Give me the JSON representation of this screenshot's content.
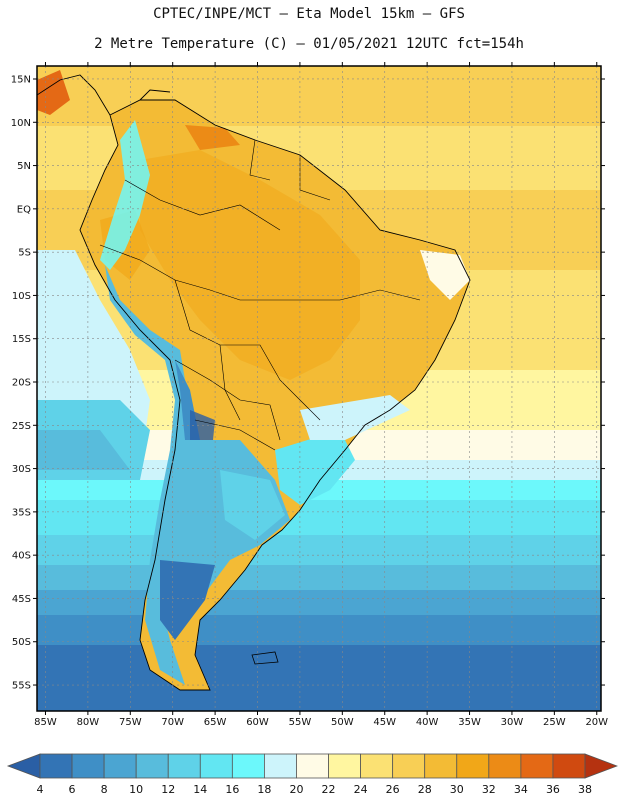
{
  "header": {
    "line1": "CPTEC/INPE/MCT –  Eta Model 15km – GFS",
    "line2": "2 Metre Temperature (C) – 01/05/2021 12UTC fct=154h"
  },
  "map": {
    "lat_labels": [
      "15N",
      "10N",
      "5N",
      "EQ",
      "5S",
      "10S",
      "15S",
      "20S",
      "25S",
      "30S",
      "35S",
      "40S",
      "45S",
      "50S",
      "55S"
    ],
    "lon_labels": [
      "85W",
      "80W",
      "75W",
      "70W",
      "65W",
      "60W",
      "55W",
      "50W",
      "45W",
      "40W",
      "35W",
      "30W",
      "25W",
      "20W"
    ],
    "lat_range": [
      -58,
      16.5
    ],
    "lon_range": [
      -86,
      -19.5
    ],
    "grid": "dotted"
  },
  "colorbar": {
    "labels": [
      "4",
      "6",
      "8",
      "10",
      "12",
      "14",
      "16",
      "18",
      "20",
      "22",
      "24",
      "26",
      "28",
      "30",
      "32",
      "34",
      "36",
      "38"
    ],
    "colors": [
      "#2a5fa5",
      "#3374b5",
      "#3f8fc6",
      "#4ba5d2",
      "#58bcdc",
      "#5fd2e8",
      "#62e6f2",
      "#6cf8fb",
      "#cdf4fb",
      "#fffbe6",
      "#fff6a0",
      "#fbe173",
      "#f8cf55",
      "#f3bb35",
      "#f1a718",
      "#ec8b16",
      "#e46915",
      "#d04a10",
      "#b53210"
    ]
  }
}
